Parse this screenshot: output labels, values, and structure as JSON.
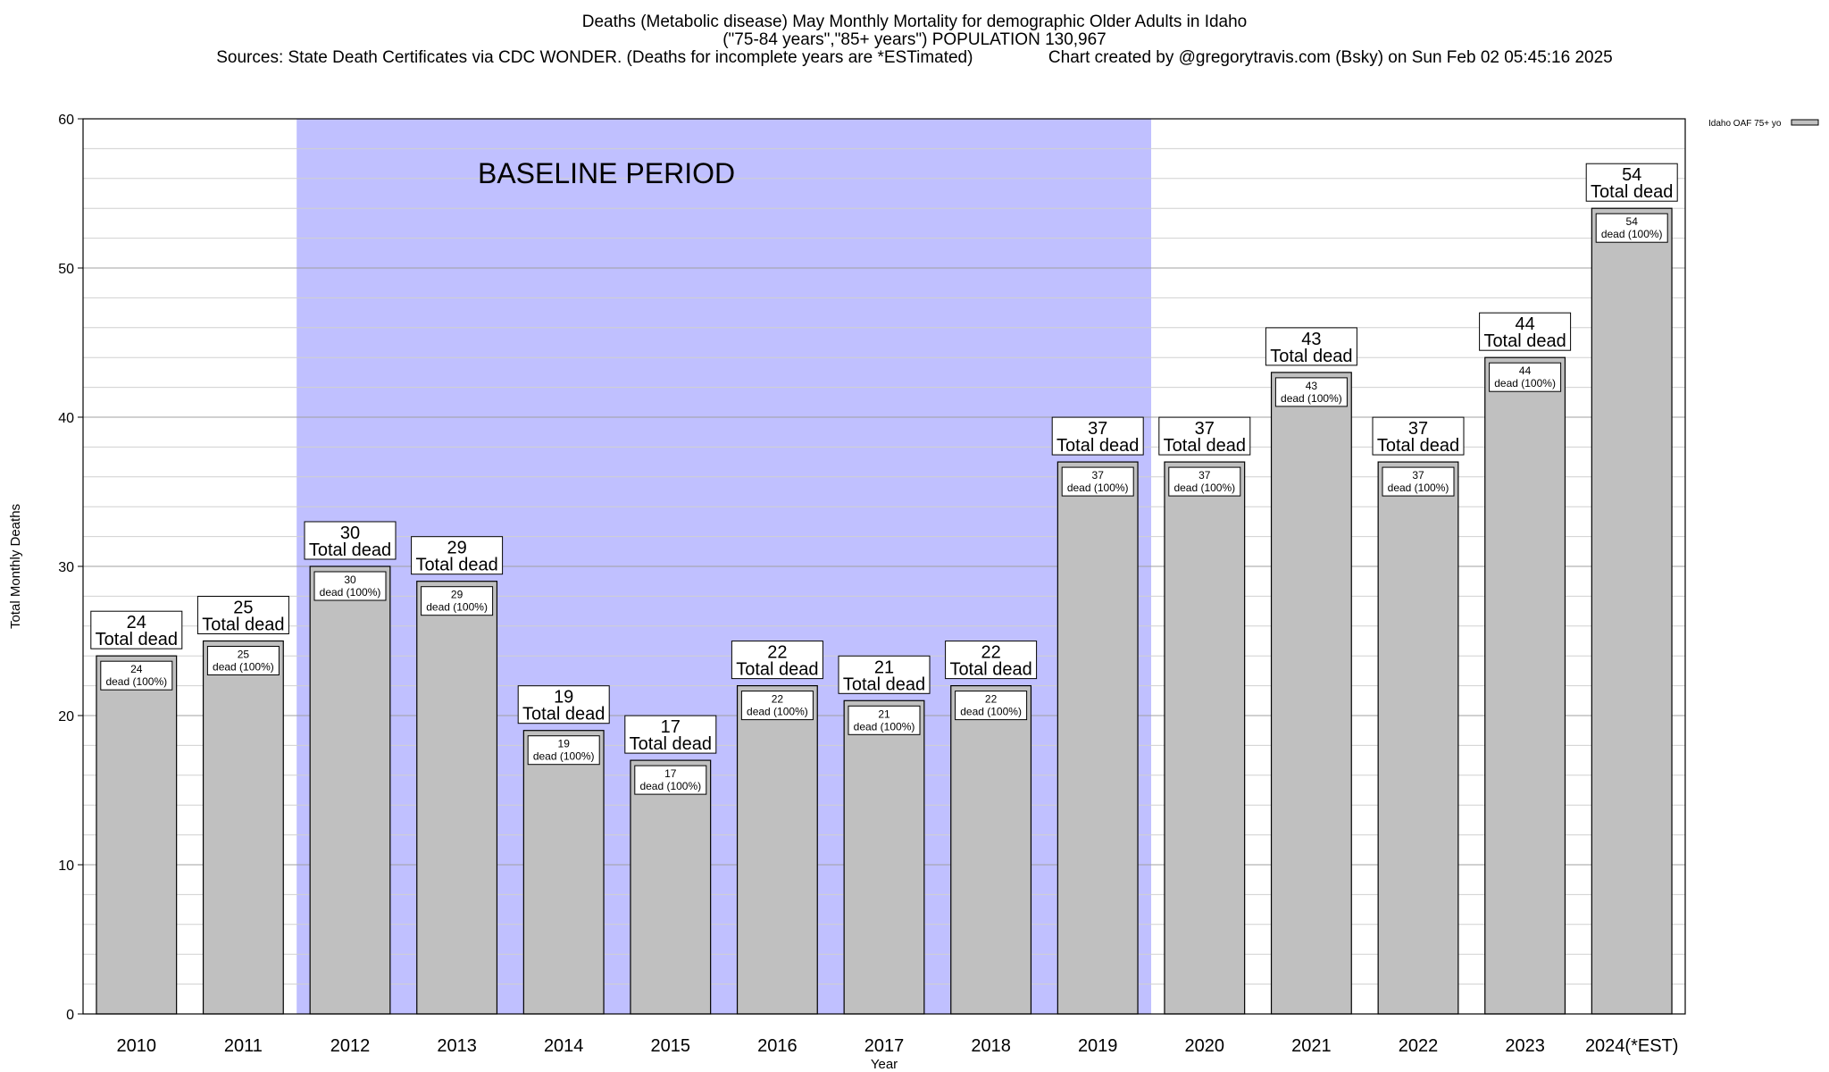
{
  "title_lines": [
    "Deaths (Metabolic disease) May Monthly Mortality for demographic Older Adults in Idaho",
    "(\"75-84 years\",\"85+ years\") POPULATION 130,967",
    "Sources: State Death Certificates via CDC WONDER. (Deaths for incomplete years are *ESTimated)                Chart created by @gregorytravis.com (Bsky) on Sun Feb 02 05:45:16 2025"
  ],
  "chart_data": {
    "type": "bar",
    "categories": [
      "2010",
      "2011",
      "2012",
      "2013",
      "2014",
      "2015",
      "2016",
      "2017",
      "2018",
      "2019",
      "2020",
      "2021",
      "2022",
      "2023",
      "2024(*EST)"
    ],
    "series": [
      {
        "name": "Idaho OAF 75+ yo",
        "values": [
          24,
          25,
          30,
          29,
          19,
          17,
          22,
          21,
          22,
          37,
          37,
          43,
          37,
          44,
          54
        ]
      }
    ],
    "xlabel": "Year",
    "ylabel": "Total Monthly Deaths",
    "ylim": [
      0,
      60
    ],
    "yticks": [
      0,
      10,
      20,
      30,
      40,
      50,
      60
    ],
    "minor_grid_step": 2,
    "grid": true,
    "legend_position": "top-right",
    "baseline_period": {
      "label": "BASELINE PERIOD",
      "start": "2012",
      "end": "2019"
    },
    "top_label_suffix": "Total dead",
    "inner_label_suffix": "dead (100%)",
    "colors": {
      "bar": "#c0c0c0",
      "baseline": "#c0c0ff",
      "grid": "#d0d0d0"
    }
  }
}
